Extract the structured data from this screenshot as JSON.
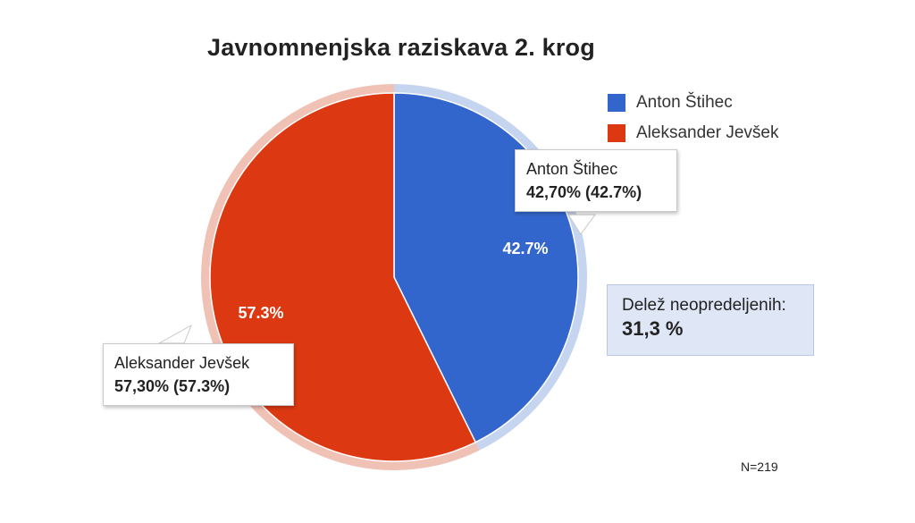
{
  "chart_data": {
    "type": "pie",
    "title": "Javnomnenjska raziskava 2. krog",
    "slices": [
      {
        "name": "Anton Štihec",
        "value": 42.7,
        "color": "#3366cc",
        "slice_label": "42.7%",
        "tooltip_name": "Anton Štihec",
        "tooltip_value": "42,70% (42.7%)"
      },
      {
        "name": "Aleksander Jevšek",
        "value": 57.3,
        "color": "#dc3912",
        "slice_label": "57.3%",
        "tooltip_name": "Aleksander Jevšek",
        "tooltip_value": "57,30% (57.3%)"
      }
    ],
    "legend_position": "top-right",
    "annotation": {
      "label": "Delež neopredeljenih:",
      "value": "31,3 %"
    },
    "footnote": "N=219"
  }
}
